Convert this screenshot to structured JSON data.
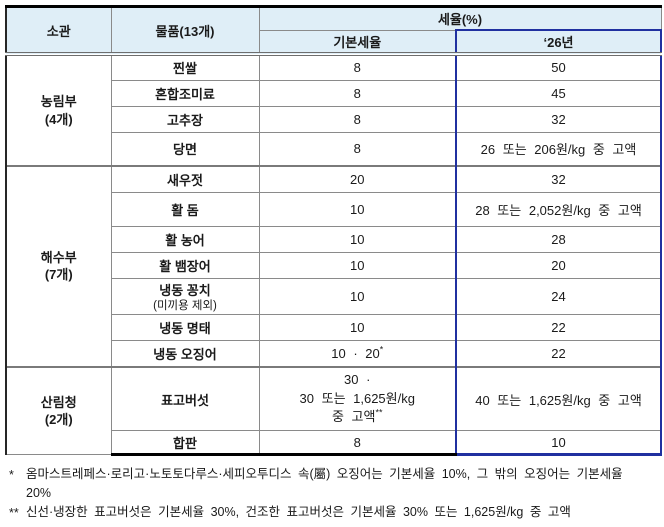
{
  "header": {
    "jurisdiction": "소관",
    "item": "물품(13개)",
    "rate_group": "세율(%)",
    "base_rate": "기본세율",
    "year26": "‘26년"
  },
  "groups": [
    {
      "name_line1": "농림부",
      "name_line2": "(4개)",
      "rows": [
        {
          "item": "찐쌀",
          "base": "8",
          "y26": "50"
        },
        {
          "item": "혼합조미료",
          "base": "8",
          "y26": "45"
        },
        {
          "item": "고추장",
          "base": "8",
          "y26": "32"
        },
        {
          "item": "당면",
          "base": "8",
          "y26": "26 또는 206원/kg 중 고액"
        }
      ]
    },
    {
      "name_line1": "해수부",
      "name_line2": "(7개)",
      "rows": [
        {
          "item": "새우젓",
          "base": "20",
          "y26": "32"
        },
        {
          "item": "활 돔",
          "base": "10",
          "y26": "28 또는 2,052원/kg 중 고액"
        },
        {
          "item": "활 농어",
          "base": "10",
          "y26": "28"
        },
        {
          "item": "활 뱀장어",
          "base": "10",
          "y26": "20"
        },
        {
          "item": "냉동 꽁치",
          "item_sub": "(미끼용 제외)",
          "base": "10",
          "y26": "24"
        },
        {
          "item": "냉동 명태",
          "base": "10",
          "y26": "22"
        },
        {
          "item": "냉동 오징어",
          "base": "10 · 20",
          "base_sup": "*",
          "y26": "22"
        }
      ]
    },
    {
      "name_line1": "산림청",
      "name_line2": "(2개)",
      "rows": [
        {
          "item": "표고버섯",
          "base_line1": "30 ·",
          "base_line2": "30 또는 1,625원/kg",
          "base_line3": "중 고액",
          "base_sup": "**",
          "y26": "40 또는 1,625원/kg 중 고액"
        },
        {
          "item": "합판",
          "base": "8",
          "y26": "10"
        }
      ]
    }
  ],
  "footnotes": [
    {
      "marker": "*",
      "line1": "옴마스트레페스·로리고·노토토다루스·세피오투디스 속(屬) 오징어는 기본세율 10%, 그 밖의 오징어는 기본세율",
      "line2": "20%"
    },
    {
      "marker": "**",
      "line1": "신선·냉장한 표고버섯은 기본세율 30%, 건조한 표고버섯은 기본세율 30% 또는 1,625원/kg 중 고액"
    }
  ],
  "colors": {
    "header_bg": "#dfeef7",
    "highlight_border": "#2030a0"
  }
}
